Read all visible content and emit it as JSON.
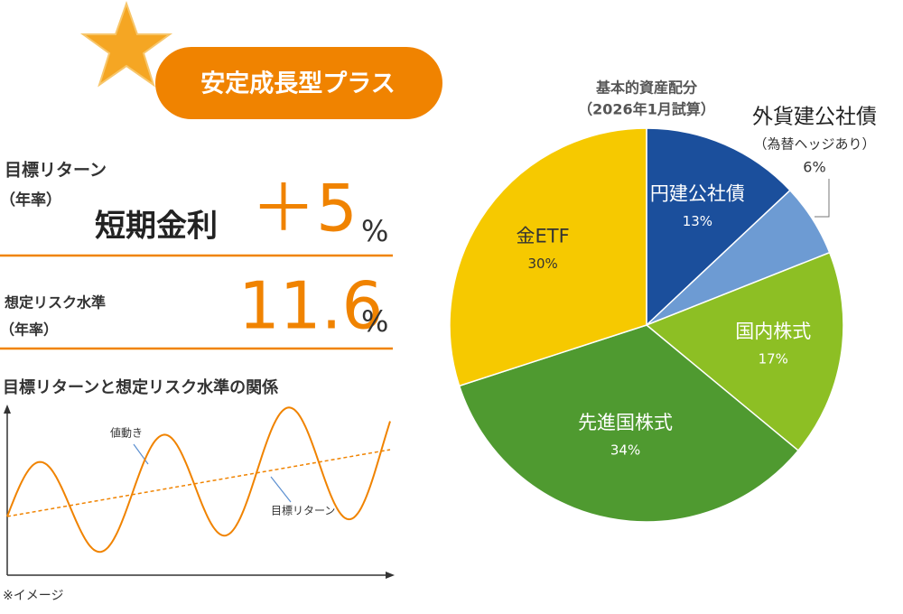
{
  "badge": "安定成長型プラス",
  "target_return": {
    "label": "目標リターン",
    "period": "（年率）",
    "basis": "短期金利",
    "value": "＋5",
    "unit": "%"
  },
  "risk": {
    "label": "想定リスク水準",
    "period": "（年率）",
    "value": 11.6,
    "unit": "%"
  },
  "illustration": {
    "title": "目標リターンと想定リスク水準の関係",
    "price_label": "値動き",
    "return_label": "目標リターン",
    "note": "※イメージ"
  },
  "chart_data": {
    "type": "pie",
    "title": "基本的資産配分",
    "subtitle": "（2026年1月試算）",
    "categories": [
      "円建公社債",
      "外貨建公社債",
      "国内株式",
      "先進国株式",
      "金ETF"
    ],
    "values": [
      13,
      6,
      17,
      34,
      30
    ],
    "value_labels": [
      "13%",
      "6%",
      "17%",
      "34%",
      "30%"
    ],
    "colors": [
      "#1b4f9c",
      "#6d9bd3",
      "#8dbf24",
      "#4f9a30",
      "#f6c900"
    ],
    "annotation": "（為替ヘッジあり）"
  }
}
